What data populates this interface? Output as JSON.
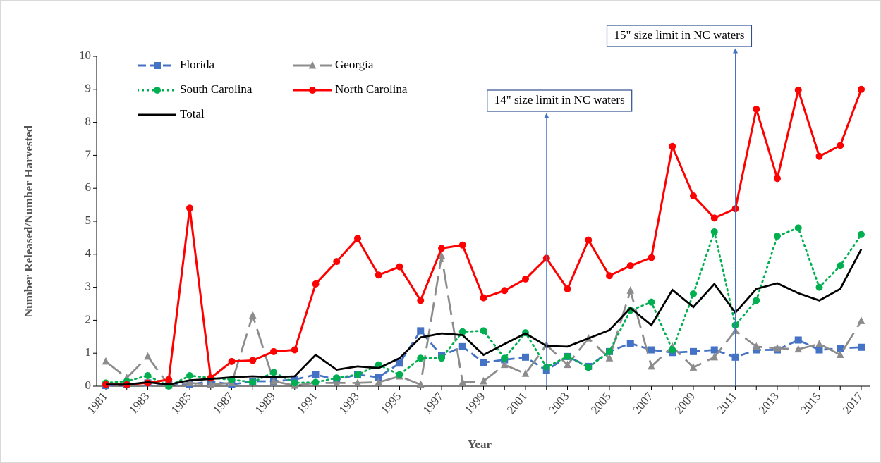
{
  "chart_data": {
    "type": "line",
    "xlabel": "Year",
    "ylabel": "Number Released/Number Harvested",
    "x": [
      1981,
      1982,
      1983,
      1984,
      1985,
      1986,
      1987,
      1988,
      1989,
      1990,
      1991,
      1992,
      1993,
      1994,
      1995,
      1996,
      1997,
      1998,
      1999,
      2000,
      2001,
      2002,
      2003,
      2004,
      2005,
      2006,
      2007,
      2008,
      2009,
      2010,
      2011,
      2012,
      2013,
      2014,
      2015,
      2016,
      2017
    ],
    "xlim": [
      1981,
      2017
    ],
    "xticks": [
      1981,
      1983,
      1985,
      1987,
      1989,
      1991,
      1993,
      1995,
      1997,
      1999,
      2001,
      2003,
      2005,
      2007,
      2009,
      2011,
      2013,
      2015,
      2017
    ],
    "ylim": [
      0,
      10
    ],
    "yticks": [
      0,
      1,
      2,
      3,
      4,
      5,
      6,
      7,
      8,
      9,
      10
    ],
    "legend": "top-left",
    "series": [
      {
        "name": "Florida",
        "color": "#4472c4",
        "marker": "square",
        "dash": "dash",
        "values": [
          0.02,
          0.05,
          0.1,
          0.05,
          0.05,
          0.15,
          0.05,
          0.15,
          0.15,
          0.2,
          0.35,
          0.2,
          0.35,
          0.27,
          0.7,
          1.68,
          0.92,
          1.2,
          0.72,
          0.8,
          0.88,
          0.48,
          0.9,
          0.6,
          1.05,
          1.3,
          1.1,
          1.02,
          1.05,
          1.1,
          0.88,
          1.1,
          1.1,
          1.4,
          1.1,
          1.15,
          1.18
        ]
      },
      {
        "name": "Georgia",
        "color": "#8c8c8c",
        "marker": "triangle",
        "dash": "longdash",
        "values": [
          0.75,
          0.25,
          0.9,
          0.02,
          0.1,
          0.05,
          0.1,
          2.15,
          0.15,
          0.02,
          0.1,
          0.1,
          0.1,
          0.12,
          0.3,
          0.05,
          3.95,
          0.12,
          0.15,
          0.65,
          0.38,
          1.25,
          0.65,
          1.45,
          0.85,
          2.9,
          0.6,
          1.2,
          0.57,
          0.88,
          1.68,
          1.2,
          1.15,
          1.12,
          1.28,
          0.95,
          1.98
        ]
      },
      {
        "name": "South Carolina",
        "color": "#00b050",
        "marker": "circle",
        "dash": "dot",
        "values": [
          0.1,
          0.15,
          0.32,
          0.0,
          0.32,
          0.25,
          0.2,
          0.12,
          0.42,
          0.1,
          0.12,
          0.25,
          0.35,
          0.65,
          0.35,
          0.85,
          0.85,
          1.65,
          1.68,
          0.85,
          1.62,
          0.58,
          0.9,
          0.57,
          1.05,
          2.3,
          2.55,
          1.1,
          2.8,
          4.68,
          1.85,
          2.6,
          4.55,
          4.8,
          3.0,
          3.65,
          4.6
        ]
      },
      {
        "name": "North Carolina",
        "color": "#ff0000",
        "marker": "circle",
        "dash": "solid",
        "values": [
          0.05,
          0.05,
          0.1,
          0.2,
          5.4,
          0.25,
          0.75,
          0.78,
          1.05,
          1.1,
          3.1,
          3.78,
          4.48,
          3.37,
          3.62,
          2.6,
          4.18,
          4.28,
          2.68,
          2.9,
          3.25,
          3.88,
          2.95,
          4.43,
          3.35,
          3.65,
          3.9,
          7.27,
          5.77,
          5.1,
          5.38,
          8.4,
          6.3,
          8.98,
          6.97,
          7.3,
          9.0
        ]
      },
      {
        "name": "Total",
        "color": "#000000",
        "dash": "solid",
        "values": [
          0.05,
          0.05,
          0.12,
          0.05,
          0.18,
          0.22,
          0.27,
          0.3,
          0.27,
          0.3,
          0.95,
          0.5,
          0.6,
          0.55,
          0.85,
          1.48,
          1.6,
          1.55,
          0.95,
          1.28,
          1.6,
          1.22,
          1.2,
          1.45,
          1.7,
          2.37,
          1.85,
          2.92,
          2.4,
          3.1,
          2.23,
          2.95,
          3.12,
          2.82,
          2.6,
          2.95,
          4.15
        ]
      }
    ],
    "annotations": [
      {
        "text": "14\" size limit in NC waters",
        "x": 2002
      },
      {
        "text": "15\" size limit in NC waters",
        "x": 2011
      }
    ]
  }
}
